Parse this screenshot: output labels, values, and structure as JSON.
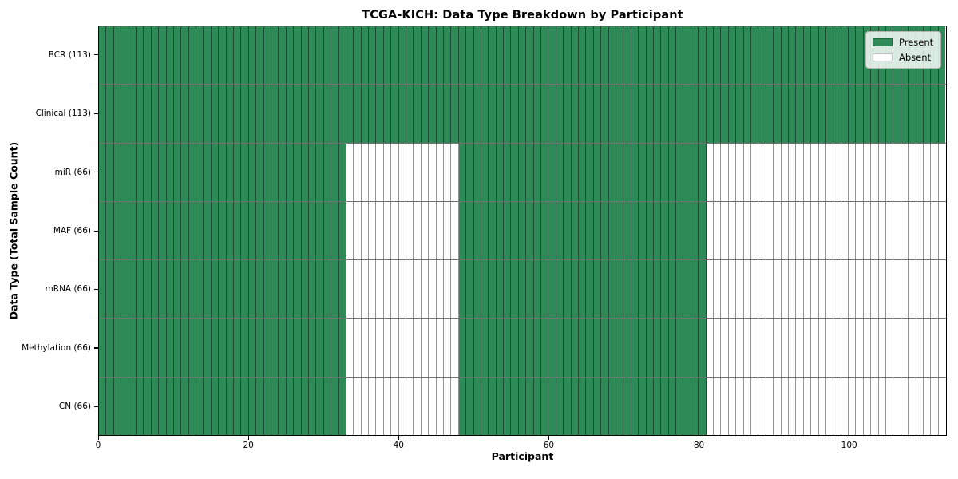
{
  "chart_data": {
    "type": "heatmap",
    "title": "TCGA-KICH: Data Type Breakdown by Participant",
    "xlabel": "Participant",
    "ylabel": "Data Type (Total Sample Count)",
    "n_participants": 113,
    "x_ticks": [
      0,
      20,
      40,
      60,
      80,
      100
    ],
    "rows": [
      {
        "label": "BCR (113)",
        "data_type": "BCR",
        "sample_count": 113,
        "present_ranges": [
          [
            0,
            113
          ]
        ]
      },
      {
        "label": "Clinical (113)",
        "data_type": "Clinical",
        "sample_count": 113,
        "present_ranges": [
          [
            0,
            113
          ]
        ]
      },
      {
        "label": "miR (66)",
        "data_type": "miR",
        "sample_count": 66,
        "present_ranges": [
          [
            0,
            33
          ],
          [
            48,
            81
          ]
        ]
      },
      {
        "label": "MAF (66)",
        "data_type": "MAF",
        "sample_count": 66,
        "present_ranges": [
          [
            0,
            33
          ],
          [
            48,
            81
          ]
        ]
      },
      {
        "label": "mRNA (66)",
        "data_type": "mRNA",
        "sample_count": 66,
        "present_ranges": [
          [
            0,
            33
          ],
          [
            48,
            81
          ]
        ]
      },
      {
        "label": "Methylation (66)",
        "data_type": "Methylation",
        "sample_count": 66,
        "present_ranges": [
          [
            0,
            33
          ],
          [
            48,
            81
          ]
        ]
      },
      {
        "label": "CN (66)",
        "data_type": "CN",
        "sample_count": 66,
        "present_ranges": [
          [
            0,
            33
          ],
          [
            48,
            81
          ]
        ]
      }
    ],
    "legend": [
      {
        "label": "Present",
        "color": "#2e8b57"
      },
      {
        "label": "Absent",
        "color": "#ffffff"
      }
    ],
    "legend_position": "upper right",
    "colors": {
      "present": "#2e8b57",
      "absent": "#ffffff",
      "cell_edge": "rgba(0,0,0,0.42)",
      "spine": "#000000"
    },
    "grid": "cell-edges",
    "xlim": [
      0,
      113
    ]
  }
}
